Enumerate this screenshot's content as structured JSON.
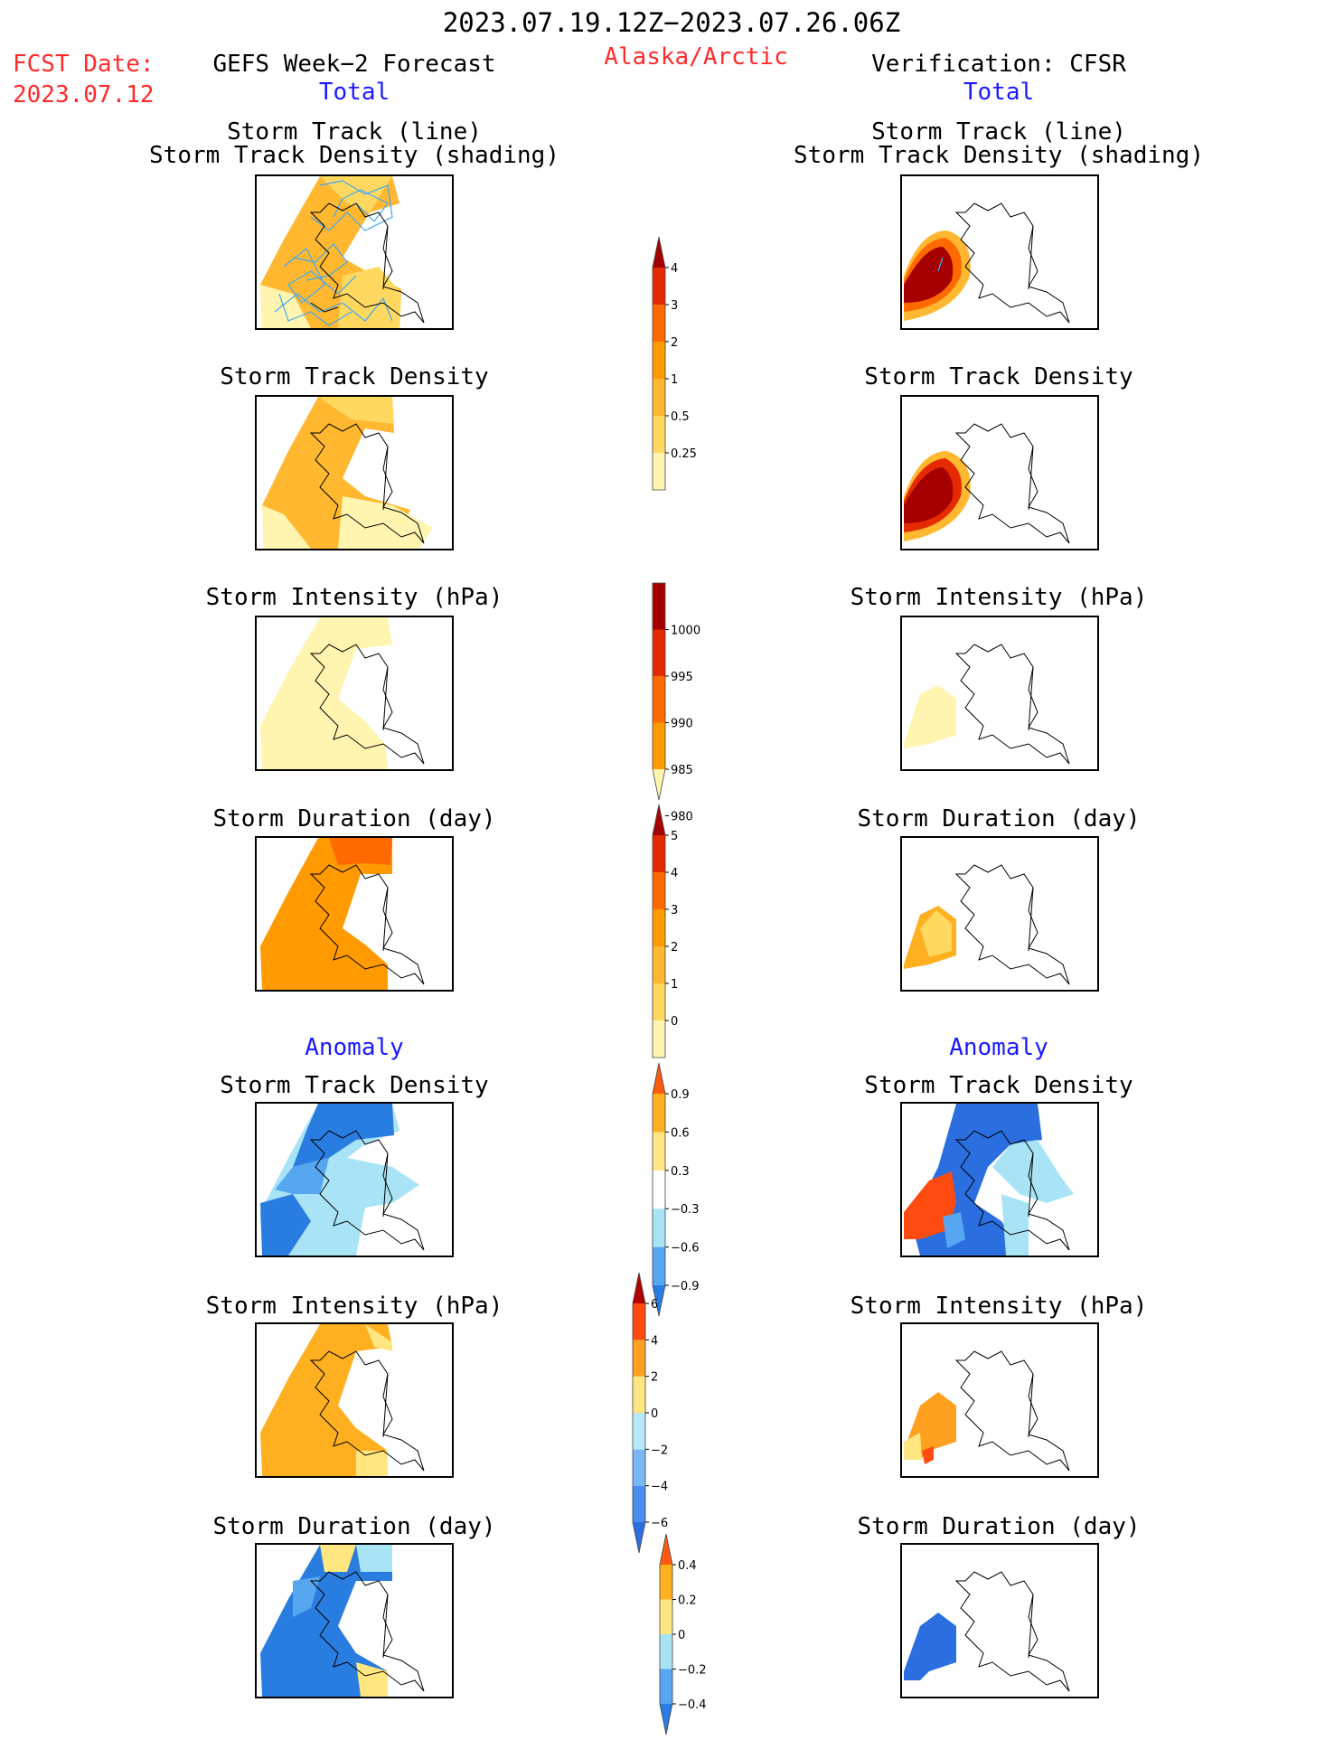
{
  "header": {
    "date_range": "2023.07.19.12Z−2023.07.26.06Z",
    "fcst_label": "FCST Date:",
    "fcst_date": "2023.07.12",
    "left_title": "GEFS Week−2 Forecast",
    "region": "Alaska/Arctic",
    "right_title": "Verification: CFSR",
    "total_label": "Total",
    "anomaly_label": "Anomaly"
  },
  "panel_titles": {
    "track_line": "Storm Track (line)",
    "track_density_shading": "Storm Track Density (shading)",
    "track_density": "Storm Track Density",
    "intensity": "Storm Intensity (hPa)",
    "duration": "Storm Duration (day)"
  },
  "colorbars": {
    "density_total": {
      "ticks": [
        "4",
        "3",
        "2",
        "1",
        "0.5",
        "0.25"
      ],
      "colors": [
        "#fff5b0",
        "#ffd860",
        "#ffb830",
        "#ff9a00",
        "#ff6a00",
        "#e52a00",
        "#a50000"
      ]
    },
    "intensity_total": {
      "ticks": [
        "1000",
        "995",
        "990",
        "985",
        "980"
      ],
      "colors": [
        "#fff5b0",
        "#ff9a00",
        "#ff6a00",
        "#e52a00",
        "#a50000"
      ]
    },
    "duration_total": {
      "ticks": [
        "5",
        "4",
        "3",
        "2",
        "1",
        "0"
      ],
      "colors": [
        "#fff5b0",
        "#ffd860",
        "#ffb830",
        "#ff9a00",
        "#ff6a00",
        "#e52a00",
        "#a50000"
      ]
    },
    "density_anom": {
      "ticks": [
        "0.9",
        "0.6",
        "0.3",
        "−0.3",
        "−0.6",
        "−0.9"
      ],
      "colors": [
        "#2a7de0",
        "#56a6f0",
        "#a8e4f5",
        "#ffffff",
        "#ffe680",
        "#ffb020",
        "#ff5a10"
      ]
    },
    "intensity_anom": {
      "ticks": [
        "6",
        "4",
        "2",
        "0",
        "−2",
        "−4",
        "−6"
      ],
      "colors": [
        "#2a6ee0",
        "#4a8ef0",
        "#7ab8f5",
        "#b8e8f8",
        "#ffe680",
        "#ffa020",
        "#ff4a10",
        "#b00000"
      ]
    },
    "duration_anom": {
      "ticks": [
        "0.4",
        "0.2",
        "0",
        "−0.2",
        "−0.4"
      ],
      "colors": [
        "#2a7de0",
        "#56a6f0",
        "#a8e4f5",
        "#ffe680",
        "#ffb020",
        "#ff5a10"
      ]
    }
  },
  "colors": {
    "title_red": "#ff2b2b",
    "label_blue": "#1a1aff",
    "track_line": "#3fa9f5"
  }
}
